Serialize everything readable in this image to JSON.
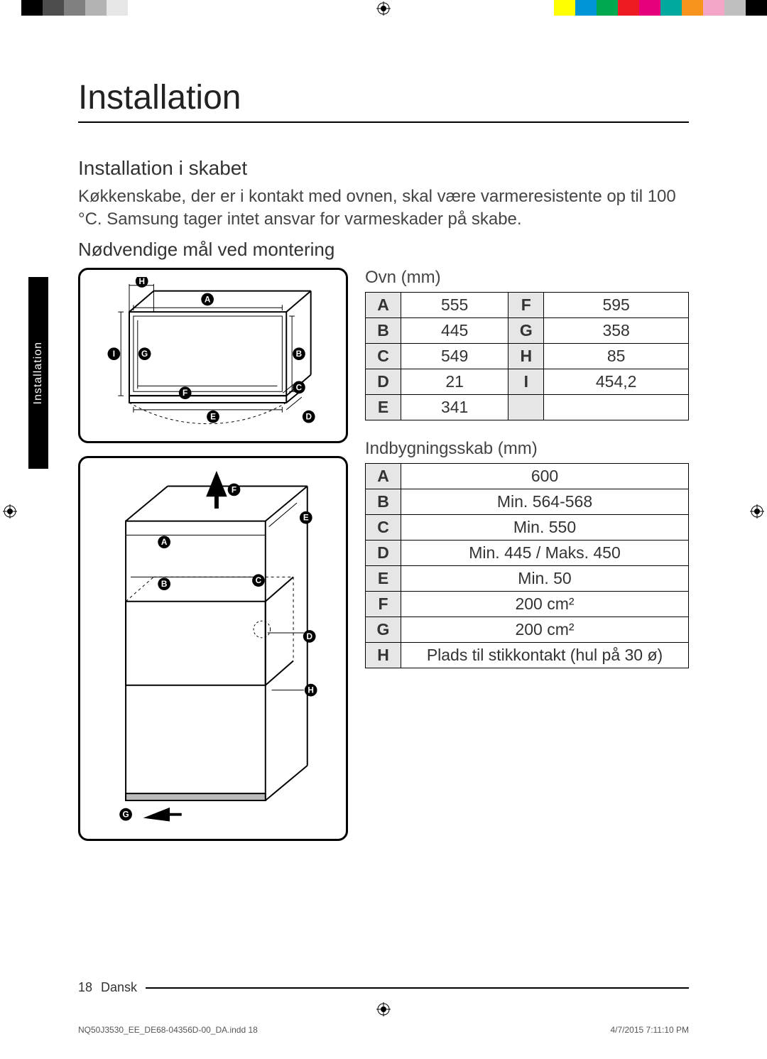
{
  "cropbar_left": [
    "#ffffff",
    "#000000",
    "#4d4d4d",
    "#808080",
    "#b3b3b3",
    "#e6e6e6",
    "#ffffff",
    "#ffffff",
    "#ffffff"
  ],
  "cropbar_right": [
    "#ffff00",
    "#0095d6",
    "#00a94f",
    "#ed1c24",
    "#e6007e",
    "#00a99d",
    "#f7941d",
    "#f4a6c9",
    "#bfbfbf",
    "#000000"
  ],
  "title": "Installation",
  "side_tab": "Installation",
  "section_title": "Installation i skabet",
  "body_text": "Køkkenskabe, der er i kontakt med ovnen, skal være varmeresistente op til 100 °C. Samsung tager intet ansvar for varmeskader på skabe.",
  "subsection_title": "Nødvendige mål ved montering",
  "diagram1_labels": [
    "A",
    "B",
    "C",
    "D",
    "E",
    "F",
    "G",
    "H",
    "I"
  ],
  "diagram2_labels": [
    "A",
    "B",
    "C",
    "D",
    "E",
    "F",
    "G",
    "H"
  ],
  "table1": {
    "title": "Ovn (mm)",
    "rows": [
      {
        "k1": "A",
        "v1": "555",
        "k2": "F",
        "v2": "595"
      },
      {
        "k1": "B",
        "v1": "445",
        "k2": "G",
        "v2": "358"
      },
      {
        "k1": "C",
        "v1": "549",
        "k2": "H",
        "v2": "85"
      },
      {
        "k1": "D",
        "v1": "21",
        "k2": "I",
        "v2": "454,2"
      },
      {
        "k1": "E",
        "v1": "341",
        "k2": "",
        "v2": ""
      }
    ],
    "col_widths": [
      "50px",
      "120px",
      "50px",
      "120px"
    ],
    "header_bg": "#e6e6e6"
  },
  "table2": {
    "title": "Indbygningsskab (mm)",
    "rows": [
      {
        "k": "A",
        "v": "600"
      },
      {
        "k": "B",
        "v": "Min. 564-568"
      },
      {
        "k": "C",
        "v": "Min. 550"
      },
      {
        "k": "D",
        "v": "Min. 445 / Maks. 450"
      },
      {
        "k": "E",
        "v": "Min. 50"
      },
      {
        "k": "F",
        "v": "200 cm²"
      },
      {
        "k": "G",
        "v": "200 cm²"
      },
      {
        "k": "H",
        "v": "Plads til stikkontakt (hul på 30 ø)"
      }
    ],
    "col_widths": [
      "50px",
      "auto"
    ],
    "header_bg": "#e6e6e6"
  },
  "footer": {
    "page": "18",
    "language": "Dansk"
  },
  "print_info": {
    "file": "NQ50J3530_EE_DE68-04356D-00_DA.indd   18",
    "timestamp": "4/7/2015   7:11:10 PM"
  },
  "style": {
    "page_bg": "#ffffff",
    "text_color": "#333333",
    "rule_color": "#000000",
    "diagram_border_radius": 14,
    "diagram_border_width": 3,
    "diagram_stroke": "#000000",
    "diagram_label_bg": "#000000",
    "diagram_label_fg": "#ffffff",
    "h1_fontsize": 48,
    "h2_fontsize": 28,
    "body_fontsize": 24,
    "table_fontsize": 23
  }
}
